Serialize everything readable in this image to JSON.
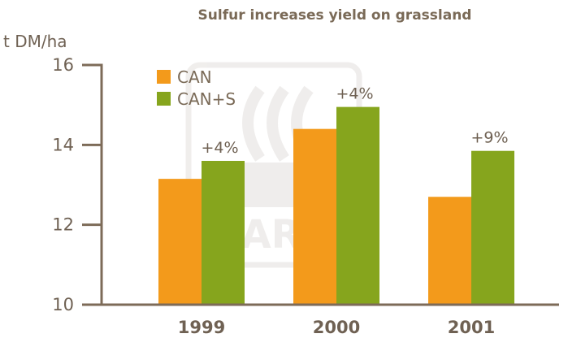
{
  "chart_data": {
    "type": "bar",
    "title": "Sulfur increases yield on grassland",
    "ylabel": "t DM/ha",
    "xlabel": "",
    "ylim": [
      10,
      16
    ],
    "yticks": [
      "10",
      "12",
      "14",
      "16"
    ],
    "categories": [
      "1999",
      "2000",
      "2001"
    ],
    "series": [
      {
        "name": "CAN",
        "values": [
          13.15,
          14.4,
          12.7
        ],
        "color": "#f39a1b"
      },
      {
        "name": "CAN+S",
        "values": [
          13.6,
          14.95,
          13.85
        ],
        "color": "#86a51d"
      }
    ],
    "annotations": [
      "+4%",
      "+4%",
      "+9%"
    ],
    "legend_position": "top-left",
    "grid": false,
    "watermark": "YARA"
  }
}
